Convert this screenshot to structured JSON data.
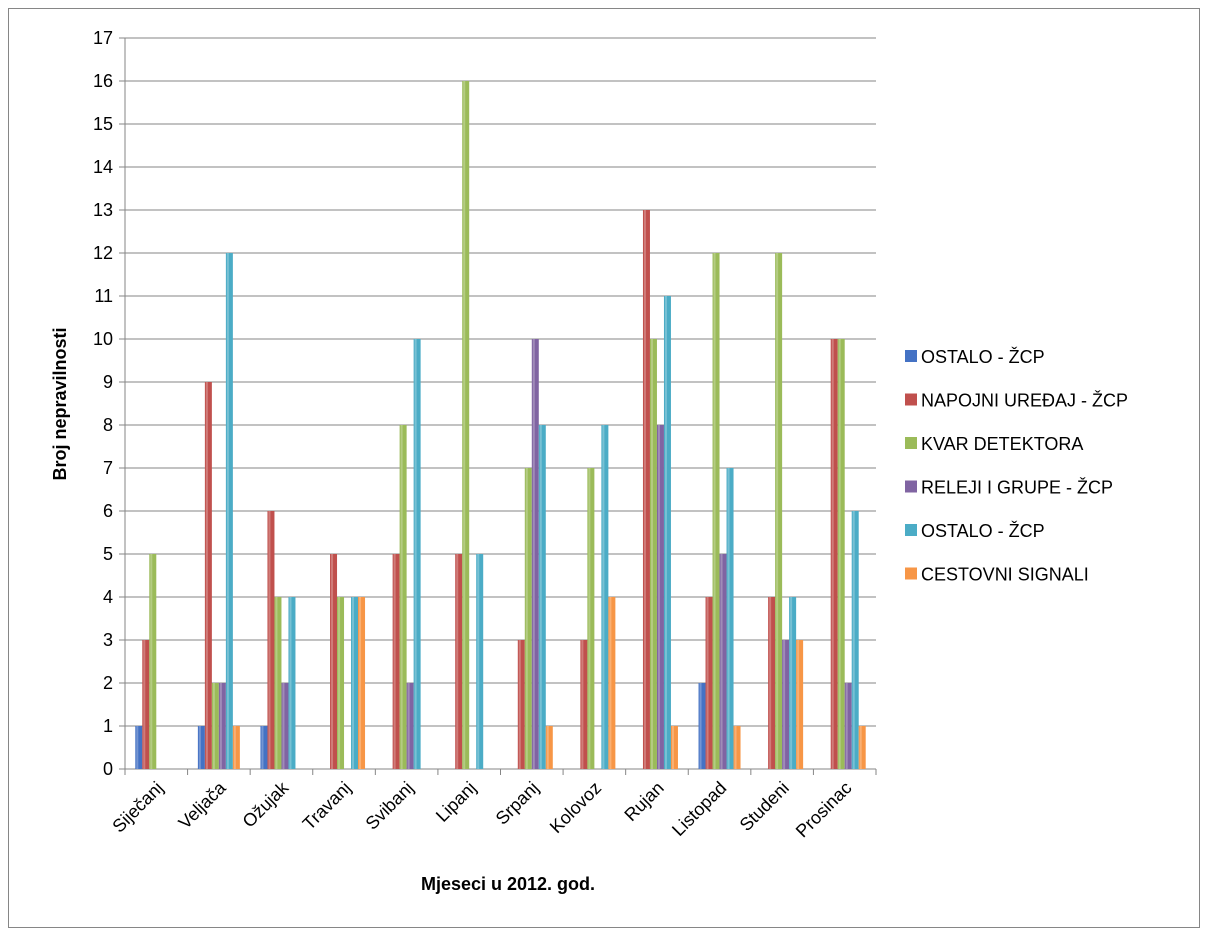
{
  "chart_data": {
    "type": "bar",
    "title": "",
    "xlabel": "Mjeseci u 2012. god.",
    "ylabel": "Broj nepravilnosti",
    "ylim": [
      0,
      17
    ],
    "yticks": [
      0,
      1,
      2,
      3,
      4,
      5,
      6,
      7,
      8,
      9,
      10,
      11,
      12,
      13,
      14,
      15,
      16,
      17
    ],
    "grid": true,
    "legend_position": "right",
    "categories": [
      "Siječanj",
      "Veljača",
      "Ožujak",
      "Travanj",
      "Svibanj",
      "Lipanj",
      "Srpanj",
      "Kolovoz",
      "Rujan",
      "Listopad",
      "Studeni",
      "Prosinac"
    ],
    "series": [
      {
        "name": "OSTALO - ŽCP",
        "color": "#4472C4",
        "values": [
          1,
          1,
          1,
          0,
          0,
          0,
          0,
          0,
          0,
          2,
          0,
          0
        ]
      },
      {
        "name": "NAPOJNI UREĐAJ - ŽCP",
        "color": "#C0504D",
        "values": [
          3,
          9,
          6,
          5,
          5,
          5,
          3,
          3,
          13,
          4,
          4,
          10
        ]
      },
      {
        "name": "KVAR DETEKTORA",
        "color": "#9BBB59",
        "values": [
          5,
          2,
          4,
          4,
          8,
          16,
          7,
          7,
          10,
          12,
          12,
          10
        ]
      },
      {
        "name": "RELEJI I GRUPE - ŽCP",
        "color": "#8064A2",
        "values": [
          0,
          2,
          2,
          0,
          2,
          0,
          10,
          0,
          8,
          5,
          3,
          2
        ]
      },
      {
        "name": "OSTALO - ŽCP",
        "color": "#4BACC6",
        "values": [
          0,
          12,
          4,
          4,
          10,
          5,
          8,
          8,
          11,
          7,
          4,
          6
        ]
      },
      {
        "name": "CESTOVNI SIGNALI",
        "color": "#F79646",
        "values": [
          0,
          1,
          0,
          4,
          0,
          0,
          1,
          4,
          1,
          1,
          3,
          1
        ]
      }
    ]
  }
}
